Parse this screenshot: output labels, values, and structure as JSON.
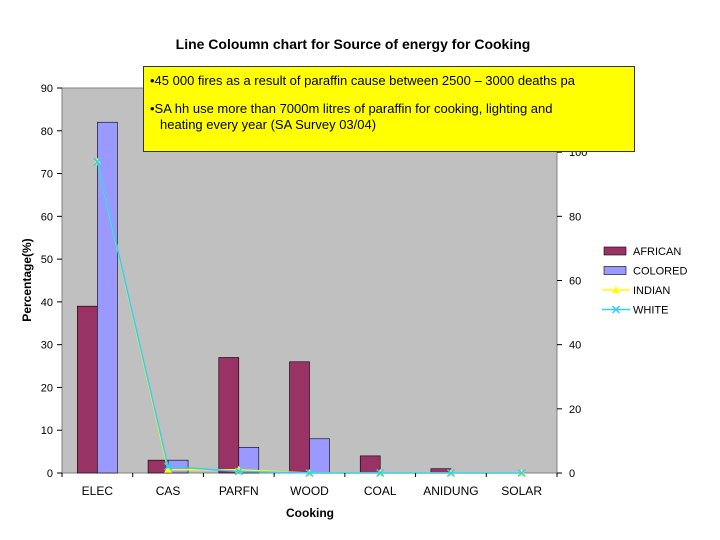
{
  "chart_data": {
    "type": "bar",
    "title": "Line Coloumn chart for Source of energy for Cooking",
    "xlabel": "Cooking",
    "ylabel": "Percentage(%)",
    "ylim": [
      0,
      90
    ],
    "yticks": [
      0,
      10,
      20,
      30,
      40,
      50,
      60,
      70,
      80,
      90
    ],
    "y2lim": [
      0,
      120
    ],
    "y2ticks": [
      0,
      20,
      40,
      60,
      80,
      100
    ],
    "categories": [
      "ELEC",
      "CAS",
      "PARFN",
      "WOOD",
      "COAL",
      "ANIDUNG",
      "SOLAR"
    ],
    "series": [
      {
        "name": "AFRICAN",
        "kind": "bar",
        "axis": "left",
        "color": "#993366",
        "values": [
          39,
          3,
          27,
          26,
          4,
          1,
          0
        ]
      },
      {
        "name": "COLORED",
        "kind": "bar",
        "axis": "left",
        "color": "#9999ff",
        "values": [
          82,
          3,
          6,
          8,
          0,
          0,
          0
        ]
      },
      {
        "name": "INDIAN",
        "kind": "line",
        "axis": "right",
        "color": "#ffff00",
        "marker": "triangle",
        "values": [
          97,
          1,
          1,
          0,
          0,
          0,
          0
        ]
      },
      {
        "name": "WHITE",
        "kind": "line",
        "axis": "right",
        "color": "#33ccff",
        "marker": "x",
        "values": [
          97,
          2,
          0.5,
          0,
          0,
          0,
          0
        ]
      }
    ],
    "legend": "right",
    "grid": false,
    "plot_bg": "#c0c0c0"
  },
  "annotation": {
    "line1": "•45 000 fires as a result of paraffin cause between 2500 – 3000 deaths pa",
    "line2a": "•SA hh use more than 7000m litres of paraffin for cooking, lighting and",
    "line2b": "heating every year (SA Survey 03/04)"
  }
}
